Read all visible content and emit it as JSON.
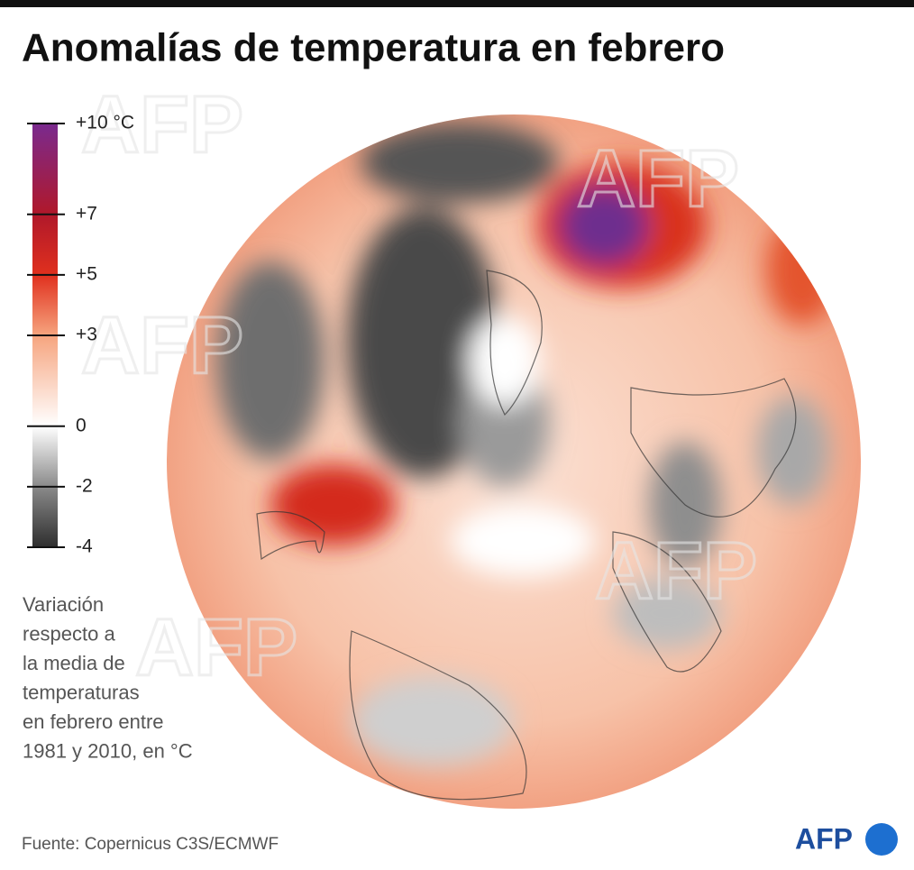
{
  "header": {
    "title": "Anomalías de temperatura en febrero"
  },
  "legend": {
    "lim": [
      -4,
      10
    ],
    "ticks": [
      {
        "value": 10,
        "label": "+10 °C"
      },
      {
        "value": 7,
        "label": "+7"
      },
      {
        "value": 5,
        "label": "+5"
      },
      {
        "value": 3,
        "label": "+3"
      },
      0,
      -2,
      -4
    ],
    "gradient": [
      {
        "value": -4,
        "color": "#2e2e2e"
      },
      {
        "value": -2,
        "color": "#8a8a8a"
      },
      {
        "value": 0,
        "color": "#ffffff"
      },
      {
        "value": 3,
        "color": "#f6a47e"
      },
      {
        "value": 5,
        "color": "#e0301e"
      },
      {
        "value": 7,
        "color": "#b0182a"
      },
      {
        "value": 10,
        "color": "#7a2a8f"
      }
    ]
  },
  "note": [
    "Variación",
    "respecto a",
    "la media de",
    "temperaturas",
    "en febrero entre",
    "1981 y 2010, en °C"
  ],
  "watermark": "AFP",
  "source": "Fuente: Copernicus C3S/ECMWF",
  "logo": "AFP"
}
